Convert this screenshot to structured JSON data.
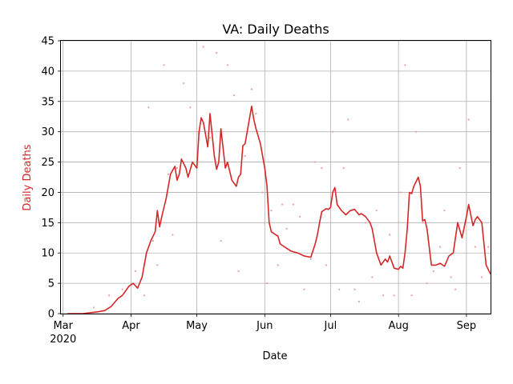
{
  "chart_data": {
    "type": "line",
    "title": "VA: Daily Deaths",
    "xlabel": "Date",
    "ylabel": "Daily Deaths",
    "x_range": [
      "2020-02-29",
      "2020-09-12"
    ],
    "ylim": [
      0,
      45
    ],
    "y_ticks": [
      0,
      5,
      10,
      15,
      20,
      25,
      30,
      35,
      40,
      45
    ],
    "x_ticks": [
      {
        "date": "2020-03-01",
        "label": "Mar",
        "sublabel": "2020"
      },
      {
        "date": "2020-04-01",
        "label": "Apr",
        "sublabel": ""
      },
      {
        "date": "2020-05-01",
        "label": "May",
        "sublabel": ""
      },
      {
        "date": "2020-06-01",
        "label": "Jun",
        "sublabel": ""
      },
      {
        "date": "2020-07-01",
        "label": "Jul",
        "sublabel": ""
      },
      {
        "date": "2020-08-01",
        "label": "Aug",
        "sublabel": ""
      },
      {
        "date": "2020-09-01",
        "label": "Sep",
        "sublabel": ""
      }
    ],
    "grid": true,
    "colors": {
      "line": "#d62728",
      "points": "#e8a0a0",
      "ylabel": "#d62728"
    },
    "series": [
      {
        "style": "line",
        "x": [
          "2020-03-03",
          "2020-03-10",
          "2020-03-17",
          "2020-03-20",
          "2020-03-23",
          "2020-03-26",
          "2020-03-28",
          "2020-03-31",
          "2020-04-02",
          "2020-04-04",
          "2020-04-06",
          "2020-04-08",
          "2020-04-10",
          "2020-04-12",
          "2020-04-13",
          "2020-04-14",
          "2020-04-15",
          "2020-04-17",
          "2020-04-19",
          "2020-04-21",
          "2020-04-22",
          "2020-04-23",
          "2020-04-24",
          "2020-04-26",
          "2020-04-27",
          "2020-04-29",
          "2020-05-01",
          "2020-05-02",
          "2020-05-03",
          "2020-05-04",
          "2020-05-06",
          "2020-05-07",
          "2020-05-09",
          "2020-05-10",
          "2020-05-11",
          "2020-05-12",
          "2020-05-14",
          "2020-05-15",
          "2020-05-17",
          "2020-05-19",
          "2020-05-20",
          "2020-05-21",
          "2020-05-22",
          "2020-05-23",
          "2020-05-24",
          "2020-05-26",
          "2020-05-27",
          "2020-05-28",
          "2020-05-30",
          "2020-06-01",
          "2020-06-02",
          "2020-06-03",
          "2020-06-04",
          "2020-06-06",
          "2020-06-07",
          "2020-06-08",
          "2020-06-10",
          "2020-06-13",
          "2020-06-16",
          "2020-06-19",
          "2020-06-22",
          "2020-06-24",
          "2020-06-25",
          "2020-06-26",
          "2020-06-27",
          "2020-06-29",
          "2020-06-30",
          "2020-07-01",
          "2020-07-02",
          "2020-07-03",
          "2020-07-04",
          "2020-07-06",
          "2020-07-08",
          "2020-07-10",
          "2020-07-12",
          "2020-07-14",
          "2020-07-15",
          "2020-07-17",
          "2020-07-19",
          "2020-07-20",
          "2020-07-22",
          "2020-07-24",
          "2020-07-26",
          "2020-07-27",
          "2020-07-28",
          "2020-07-30",
          "2020-08-01",
          "2020-08-02",
          "2020-08-03",
          "2020-08-04",
          "2020-08-05",
          "2020-08-06",
          "2020-08-07",
          "2020-08-08",
          "2020-08-10",
          "2020-08-11",
          "2020-08-12",
          "2020-08-13",
          "2020-08-14",
          "2020-08-16",
          "2020-08-18",
          "2020-08-20",
          "2020-08-22",
          "2020-08-24",
          "2020-08-26",
          "2020-08-27",
          "2020-08-28",
          "2020-08-30",
          "2020-09-01",
          "2020-09-02",
          "2020-09-04",
          "2020-09-05",
          "2020-09-06",
          "2020-09-07",
          "2020-09-08",
          "2020-09-10",
          "2020-09-12"
        ],
        "y": [
          0,
          0,
          0.3,
          0.5,
          1.2,
          2.5,
          3,
          4.5,
          5,
          4.2,
          6,
          10,
          12,
          13.5,
          17,
          14.3,
          16,
          19,
          23,
          24.3,
          22,
          23,
          25.5,
          24,
          22.5,
          25,
          24,
          30,
          32.3,
          31.5,
          27.5,
          33,
          26,
          23.8,
          25,
          30.5,
          24,
          25,
          22,
          21,
          22.5,
          23,
          27.7,
          28,
          30,
          34.2,
          32,
          30.5,
          28,
          24,
          21,
          15,
          13.5,
          13,
          12.8,
          11.5,
          11,
          10.3,
          10,
          9.5,
          9.3,
          11.5,
          13,
          15,
          16.8,
          17.3,
          17.2,
          17.5,
          20,
          20.8,
          18,
          17,
          16.3,
          17,
          17.2,
          16.3,
          16.5,
          16,
          15,
          14,
          10,
          8,
          9,
          8.5,
          9.5,
          7.5,
          7.3,
          7.8,
          7.5,
          10,
          14,
          20,
          19.8,
          21,
          22.5,
          21,
          15.3,
          15.5,
          14,
          8,
          8,
          8.3,
          7.8,
          9.5,
          10,
          12.5,
          15,
          12.5,
          16,
          18,
          14.5,
          15.5,
          16,
          15.5,
          15,
          8,
          6.5
        ]
      },
      {
        "style": "points",
        "x": [
          "2020-03-15",
          "2020-03-22",
          "2020-03-28",
          "2020-04-03",
          "2020-04-07",
          "2020-04-09",
          "2020-04-11",
          "2020-04-13",
          "2020-04-16",
          "2020-04-18",
          "2020-04-20",
          "2020-04-22",
          "2020-04-25",
          "2020-04-28",
          "2020-05-01",
          "2020-05-04",
          "2020-05-07",
          "2020-05-10",
          "2020-05-12",
          "2020-05-15",
          "2020-05-18",
          "2020-05-20",
          "2020-05-23",
          "2020-05-26",
          "2020-05-28",
          "2020-05-31",
          "2020-06-02",
          "2020-06-04",
          "2020-06-07",
          "2020-06-09",
          "2020-06-11",
          "2020-06-14",
          "2020-06-17",
          "2020-06-19",
          "2020-06-22",
          "2020-06-24",
          "2020-06-27",
          "2020-06-29",
          "2020-07-02",
          "2020-07-05",
          "2020-07-07",
          "2020-07-09",
          "2020-07-12",
          "2020-07-14",
          "2020-07-17",
          "2020-07-20",
          "2020-07-22",
          "2020-07-25",
          "2020-07-28",
          "2020-07-30",
          "2020-08-02",
          "2020-08-04",
          "2020-08-07",
          "2020-08-09",
          "2020-08-12",
          "2020-08-14",
          "2020-08-17",
          "2020-08-20",
          "2020-08-22",
          "2020-08-25",
          "2020-08-27",
          "2020-08-29",
          "2020-09-02",
          "2020-09-05",
          "2020-09-08",
          "2020-09-11"
        ],
        "y": [
          1,
          3,
          4,
          7,
          3,
          34,
          12,
          8,
          41,
          23,
          13,
          24,
          38,
          34,
          30,
          44,
          29,
          43,
          12,
          41,
          36,
          7,
          26,
          37,
          33,
          20,
          5,
          17,
          8,
          18,
          14,
          18,
          16,
          4,
          9,
          25,
          24,
          8,
          30,
          4,
          24,
          32,
          4,
          2,
          15,
          6,
          17,
          3,
          13,
          3,
          20,
          41,
          3,
          30,
          15,
          5,
          7,
          11,
          17,
          6,
          4,
          24,
          32,
          11,
          6,
          11
        ]
      }
    ]
  }
}
